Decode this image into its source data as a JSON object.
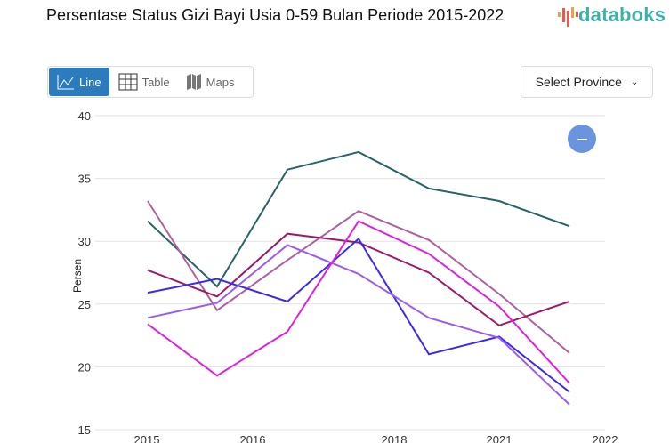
{
  "title": "Persentase Status Gizi Bayi Usia 0-59 Bulan Periode 2015-2022",
  "logo": "databoks",
  "tabs": [
    {
      "label": "Line",
      "icon": "line-chart-icon",
      "active": true
    },
    {
      "label": "Table",
      "icon": "table-icon"
    },
    {
      "label": "Maps",
      "icon": "map-icon"
    }
  ],
  "select": {
    "label": "Select Province",
    "icon": "chevron-down-icon"
  },
  "zoom_button": {
    "icon": "minus-icon",
    "color": "#6a94dd"
  },
  "chart_data": {
    "type": "line",
    "title": "",
    "ylabel": "Persen",
    "xlabel": "",
    "ylim": [
      15,
      40
    ],
    "yticks": [
      15,
      20,
      25,
      30,
      35,
      40
    ],
    "xtick_labels": [
      "2015",
      "2016",
      "2018",
      "2021",
      "2022"
    ],
    "grid": true,
    "series": [
      {
        "color": "#2a6466",
        "values": [
          31.6,
          26.4,
          35.7,
          37.1,
          34.2,
          33.2,
          31.2
        ]
      },
      {
        "color": "#b0609a",
        "values": [
          33.2,
          24.5,
          28.5,
          32.4,
          30.1,
          25.8,
          21.1
        ]
      },
      {
        "color": "#9c1a6a",
        "values": [
          27.7,
          25.6,
          30.6,
          29.9,
          27.5,
          23.3,
          25.2
        ]
      },
      {
        "color": "#3a2af0",
        "values": [
          25.9,
          27.0,
          25.2,
          30.2,
          21.0,
          22.4,
          18.0
        ]
      },
      {
        "color": "#9b5cf0",
        "values": [
          23.9,
          25.1,
          29.7,
          27.4,
          23.9,
          22.3,
          17.0
        ]
      },
      {
        "color": "#e020e0",
        "values": [
          23.4,
          19.3,
          22.8,
          31.6,
          29.0,
          24.8,
          18.7
        ]
      }
    ]
  }
}
